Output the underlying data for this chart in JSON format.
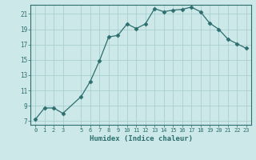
{
  "x": [
    0,
    1,
    2,
    3,
    5,
    6,
    7,
    8,
    9,
    10,
    11,
    12,
    13,
    14,
    15,
    16,
    17,
    18,
    19,
    20,
    21,
    22,
    23
  ],
  "y": [
    7.2,
    8.7,
    8.7,
    8.0,
    10.2,
    12.2,
    14.9,
    18.0,
    18.2,
    19.7,
    19.1,
    19.7,
    21.7,
    21.3,
    21.5,
    21.6,
    21.9,
    21.3,
    19.8,
    19.0,
    17.7,
    17.1,
    16.5
  ],
  "xlim": [
    -0.5,
    23.5
  ],
  "ylim": [
    6.5,
    22.2
  ],
  "yticks": [
    7,
    9,
    11,
    13,
    15,
    17,
    19,
    21
  ],
  "xticks": [
    0,
    1,
    2,
    3,
    5,
    6,
    7,
    8,
    9,
    10,
    11,
    12,
    13,
    14,
    15,
    16,
    17,
    18,
    19,
    20,
    21,
    22,
    23
  ],
  "xlabel": "Humidex (Indice chaleur)",
  "line_color": "#2d6e6e",
  "marker": "D",
  "marker_size": 2.5,
  "bg_color": "#cce8e8",
  "grid_color": "#aacece"
}
